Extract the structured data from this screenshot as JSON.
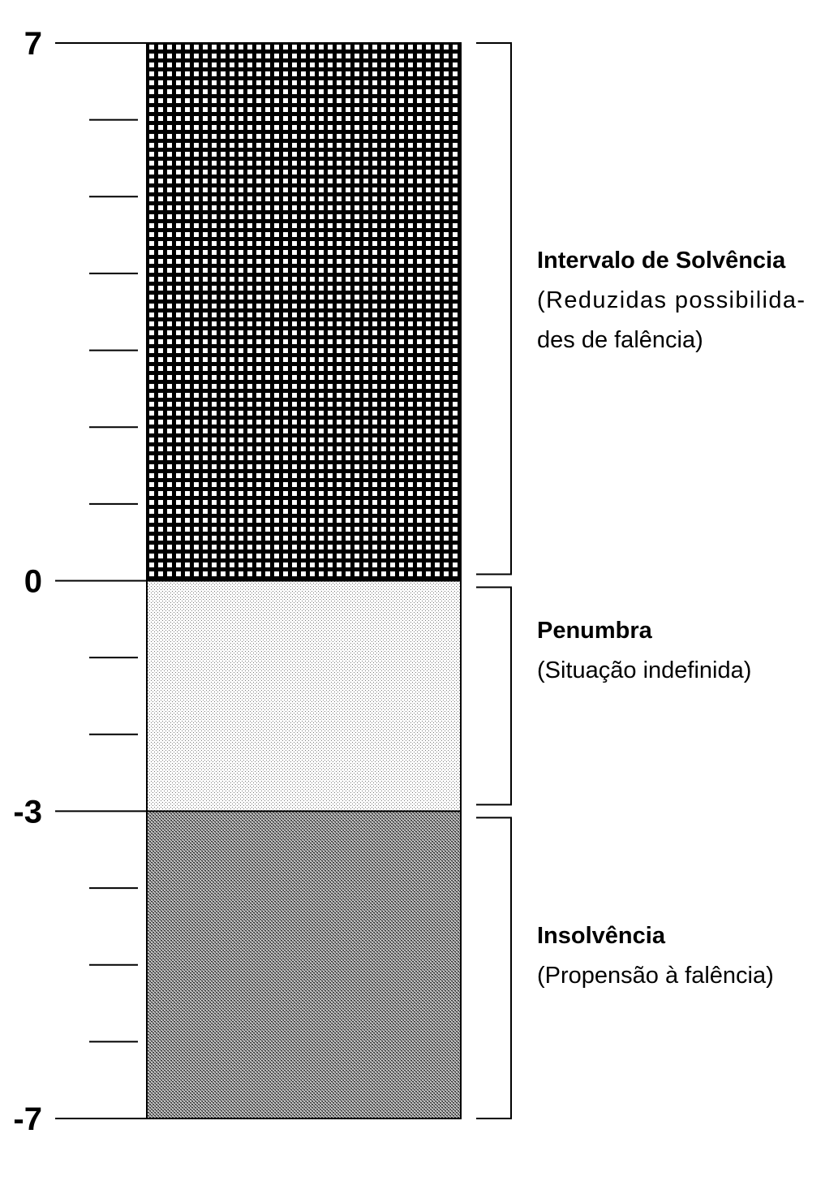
{
  "scale": {
    "max": 7,
    "min": -7,
    "labeled_ticks": [
      {
        "value": 7,
        "label": "7"
      },
      {
        "value": 0,
        "label": "0"
      },
      {
        "value": -3,
        "label": "-3"
      },
      {
        "value": -7,
        "label": "-7"
      }
    ],
    "minor_ticks": [
      6,
      5,
      4,
      3,
      2,
      1,
      -1,
      -2,
      -4,
      -5,
      -6
    ]
  },
  "zones": [
    {
      "id": "solvencia",
      "from": 0,
      "to": 7,
      "pattern": "grid",
      "title": "Intervalo de Solvência",
      "description_lines": [
        "(Reduzidas possibilida-",
        "des de falência)"
      ]
    },
    {
      "id": "penumbra",
      "from": -3,
      "to": 0,
      "pattern": "light-dots",
      "title": "Penumbra",
      "description_lines": [
        "(Situação indefinida)"
      ]
    },
    {
      "id": "insolvencia",
      "from": -7,
      "to": -3,
      "pattern": "dark-crosshatch",
      "title": "Insolvência",
      "description_lines": [
        "(Propensão à falência)"
      ]
    }
  ],
  "colors": {
    "ink": "#000000",
    "grid_fill": "#ffffff",
    "light_dots": "#777777",
    "dark_crosshatch": "#333333"
  }
}
